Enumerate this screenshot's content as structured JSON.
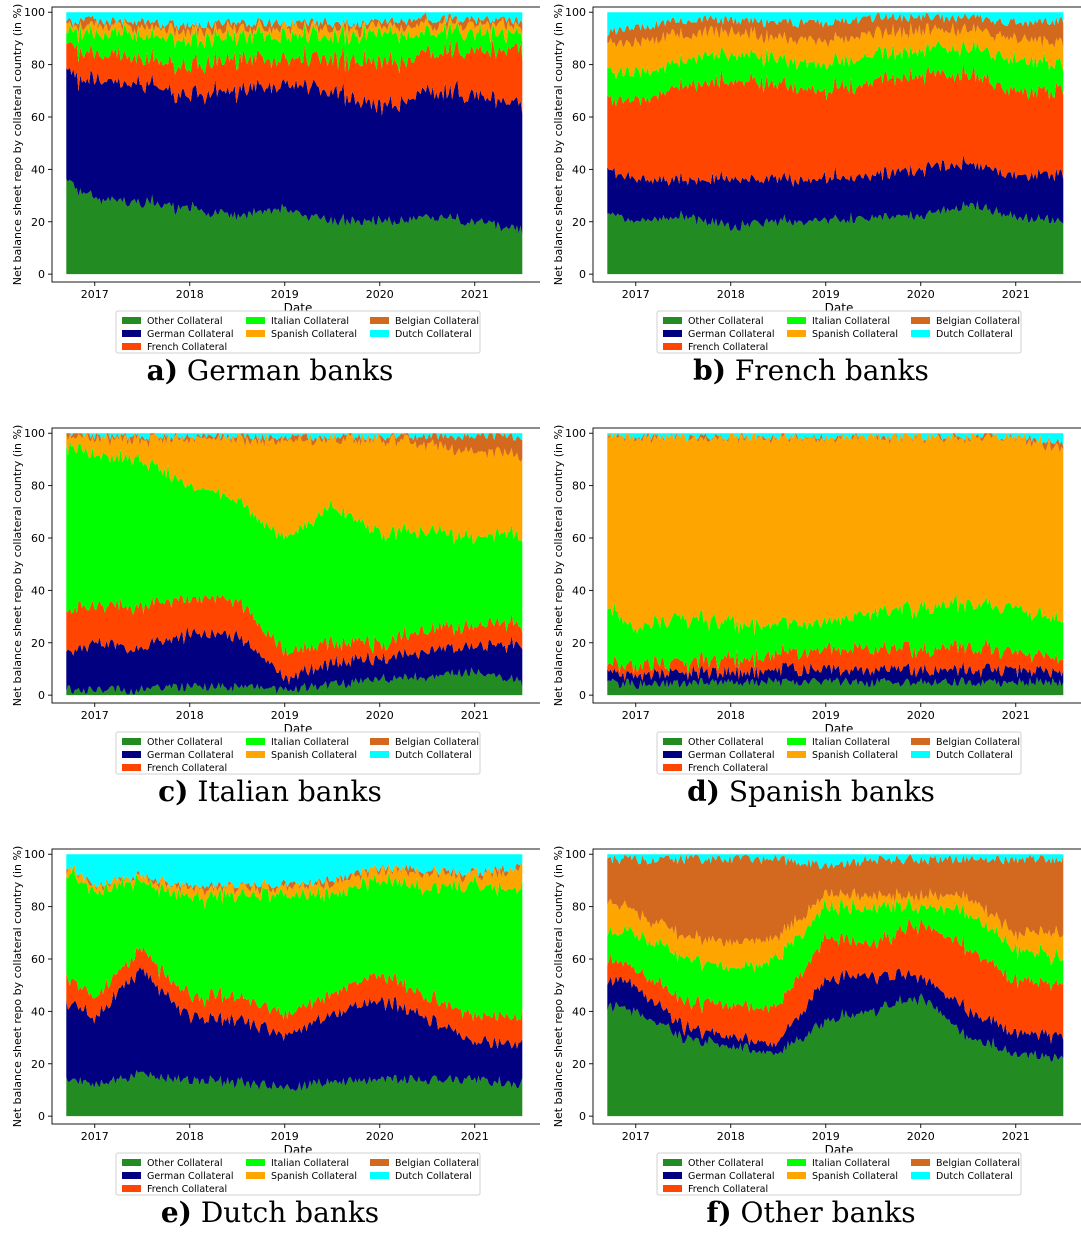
{
  "legend": {
    "entries": [
      {
        "label": "Other Collateral",
        "color": "#228B22"
      },
      {
        "label": "German Collateral",
        "color": "#000080"
      },
      {
        "label": "French Collateral",
        "color": "#FF4500"
      },
      {
        "label": "Italian Collateral",
        "color": "#00FF00"
      },
      {
        "label": "Spanish Collateral",
        "color": "#FFA500"
      },
      {
        "label": "Belgian Collateral",
        "color": "#D2691E"
      },
      {
        "label": "Dutch Collateral",
        "color": "#00FFFF"
      }
    ]
  },
  "panels": [
    {
      "letter": "a)",
      "name": "German banks"
    },
    {
      "letter": "b)",
      "name": "French banks"
    },
    {
      "letter": "c)",
      "name": "Italian banks"
    },
    {
      "letter": "d)",
      "name": "Spanish banks"
    },
    {
      "letter": "e)",
      "name": "Dutch banks"
    },
    {
      "letter": "f)",
      "name": "Other banks"
    }
  ],
  "chart_data": [
    {
      "type": "area",
      "stacked": true,
      "title": "",
      "xlabel": "Date",
      "ylabel": "Net balance sheet repo by collateral country (in %)",
      "xlim": [
        2016.55,
        2021.75
      ],
      "ylim": [
        -3,
        102
      ],
      "xticks": [
        2017,
        2018,
        2019,
        2020,
        2021
      ],
      "xtick_labels": [
        "2017",
        "2018",
        "2019",
        "2020",
        "2021"
      ],
      "yticks": [
        0,
        20,
        40,
        60,
        80,
        100
      ],
      "legend_position": "bottom",
      "x": [
        2016.7,
        2017.0,
        2017.5,
        2018.0,
        2018.5,
        2019.0,
        2019.5,
        2020.0,
        2020.5,
        2021.0,
        2021.5
      ],
      "series": [
        {
          "name": "Other Collateral",
          "values": [
            35,
            29,
            27,
            25,
            22,
            25,
            20,
            20,
            22,
            20,
            17
          ]
        },
        {
          "name": "German Collateral",
          "values": [
            41,
            45,
            45,
            43,
            48,
            48,
            50,
            43,
            48,
            48,
            48
          ]
        },
        {
          "name": "French Collateral",
          "values": [
            11,
            10,
            10,
            11,
            12,
            9,
            13,
            17,
            15,
            17,
            21
          ]
        },
        {
          "name": "Italian Collateral",
          "values": [
            5,
            8,
            9,
            10,
            9,
            9,
            8,
            11,
            8,
            7,
            6
          ]
        },
        {
          "name": "Spanish Collateral",
          "values": [
            2,
            3,
            3,
            4,
            3,
            3,
            3,
            3,
            3,
            3,
            3
          ]
        },
        {
          "name": "Belgian Collateral",
          "values": [
            2,
            2,
            2,
            2,
            2,
            2,
            2,
            2,
            2,
            2,
            2
          ]
        },
        {
          "name": "Dutch Collateral",
          "values": [
            4,
            3,
            4,
            5,
            4,
            4,
            4,
            4,
            2,
            3,
            3
          ]
        }
      ]
    },
    {
      "type": "area",
      "stacked": true,
      "title": "",
      "xlabel": "Date",
      "ylabel": "Net balance sheet repo by collateral country (in %)",
      "xlim": [
        2016.55,
        2021.75
      ],
      "ylim": [
        -3,
        102
      ],
      "xticks": [
        2017,
        2018,
        2019,
        2020,
        2021
      ],
      "xtick_labels": [
        "2017",
        "2018",
        "2019",
        "2020",
        "2021"
      ],
      "yticks": [
        0,
        20,
        40,
        60,
        80,
        100
      ],
      "legend_position": "bottom",
      "x": [
        2016.7,
        2017.0,
        2017.5,
        2018.0,
        2018.5,
        2019.0,
        2019.5,
        2020.0,
        2020.5,
        2021.0,
        2021.5
      ],
      "series": [
        {
          "name": "Other Collateral",
          "values": [
            24,
            20,
            22,
            18,
            20,
            20,
            22,
            22,
            26,
            22,
            20
          ]
        },
        {
          "name": "German Collateral",
          "values": [
            16,
            16,
            14,
            18,
            16,
            16,
            16,
            18,
            16,
            16,
            18
          ]
        },
        {
          "name": "French Collateral",
          "values": [
            26,
            30,
            36,
            38,
            36,
            34,
            36,
            36,
            34,
            32,
            32
          ]
        },
        {
          "name": "Italian Collateral",
          "values": [
            12,
            10,
            10,
            10,
            10,
            10,
            10,
            10,
            10,
            12,
            10
          ]
        },
        {
          "name": "Spanish Collateral",
          "values": [
            10,
            12,
            10,
            8,
            8,
            9,
            8,
            7,
            7,
            8,
            8
          ]
        },
        {
          "name": "Belgian Collateral",
          "values": [
            4,
            6,
            5,
            5,
            6,
            7,
            6,
            5,
            5,
            6,
            9
          ]
        },
        {
          "name": "Dutch Collateral",
          "values": [
            8,
            6,
            3,
            3,
            4,
            4,
            2,
            2,
            2,
            4,
            3
          ]
        }
      ]
    },
    {
      "type": "area",
      "stacked": true,
      "title": "",
      "xlabel": "Date",
      "ylabel": "Net balance sheet repo by collateral country (in %)",
      "xlim": [
        2016.55,
        2021.75
      ],
      "ylim": [
        -3,
        102
      ],
      "xticks": [
        2017,
        2018,
        2019,
        2020,
        2021
      ],
      "xtick_labels": [
        "2017",
        "2018",
        "2019",
        "2020",
        "2021"
      ],
      "yticks": [
        0,
        20,
        40,
        60,
        80,
        100
      ],
      "legend_position": "bottom",
      "x": [
        2016.7,
        2017.0,
        2017.5,
        2018.0,
        2018.5,
        2019.0,
        2019.5,
        2020.0,
        2020.5,
        2021.0,
        2021.5
      ],
      "series": [
        {
          "name": "Other Collateral",
          "values": [
            2,
            2,
            2,
            3,
            3,
            2,
            4,
            6,
            7,
            9,
            5
          ]
        },
        {
          "name": "German Collateral",
          "values": [
            14,
            18,
            16,
            20,
            20,
            4,
            8,
            8,
            10,
            10,
            14
          ]
        },
        {
          "name": "French Collateral",
          "values": [
            16,
            14,
            16,
            14,
            14,
            10,
            8,
            6,
            8,
            8,
            8
          ]
        },
        {
          "name": "Italian Collateral",
          "values": [
            62,
            58,
            56,
            43,
            38,
            44,
            52,
            42,
            38,
            33,
            35
          ]
        },
        {
          "name": "Spanish Collateral",
          "values": [
            4,
            6,
            8,
            18,
            23,
            38,
            26,
            36,
            33,
            33,
            30
          ]
        },
        {
          "name": "Belgian Collateral",
          "values": [
            1,
            1,
            1,
            1,
            1,
            1,
            1,
            1,
            3,
            6,
            7
          ]
        },
        {
          "name": "Dutch Collateral",
          "values": [
            1,
            1,
            1,
            1,
            1,
            1,
            1,
            1,
            1,
            1,
            1
          ]
        }
      ]
    },
    {
      "type": "area",
      "stacked": true,
      "title": "",
      "xlabel": "Date",
      "ylabel": "Net balance sheet repo by collateral country (in %)",
      "xlim": [
        2016.55,
        2021.75
      ],
      "ylim": [
        -3,
        102
      ],
      "xticks": [
        2017,
        2018,
        2019,
        2020,
        2021
      ],
      "xtick_labels": [
        "2017",
        "2018",
        "2019",
        "2020",
        "2021"
      ],
      "yticks": [
        0,
        20,
        40,
        60,
        80,
        100
      ],
      "legend_position": "bottom",
      "x": [
        2016.7,
        2017.0,
        2017.5,
        2018.0,
        2018.5,
        2019.0,
        2019.5,
        2020.0,
        2020.5,
        2021.0,
        2021.5
      ],
      "series": [
        {
          "name": "Other Collateral",
          "values": [
            5,
            4,
            5,
            5,
            5,
            5,
            5,
            5,
            5,
            5,
            5
          ]
        },
        {
          "name": "German Collateral",
          "values": [
            4,
            4,
            4,
            4,
            5,
            5,
            5,
            5,
            5,
            5,
            3
          ]
        },
        {
          "name": "French Collateral",
          "values": [
            3,
            4,
            4,
            5,
            6,
            8,
            8,
            8,
            9,
            7,
            5
          ]
        },
        {
          "name": "Italian Collateral",
          "values": [
            22,
            14,
            17,
            14,
            12,
            10,
            14,
            16,
            17,
            17,
            15
          ]
        },
        {
          "name": "Spanish Collateral",
          "values": [
            65,
            73,
            69,
            71,
            71,
            71,
            67,
            65,
            63,
            65,
            67
          ]
        },
        {
          "name": "Belgian Collateral",
          "values": [
            0,
            0,
            0,
            0,
            0,
            0,
            0,
            0,
            0,
            0,
            2
          ]
        },
        {
          "name": "Dutch Collateral",
          "values": [
            1,
            1,
            1,
            1,
            1,
            1,
            1,
            1,
            1,
            1,
            3
          ]
        }
      ]
    },
    {
      "type": "area",
      "stacked": true,
      "title": "",
      "xlabel": "Date",
      "ylabel": "Net balance sheet repo by collateral country (in %)",
      "xlim": [
        2016.55,
        2021.75
      ],
      "ylim": [
        -3,
        102
      ],
      "xticks": [
        2017,
        2018,
        2019,
        2020,
        2021
      ],
      "xtick_labels": [
        "2017",
        "2018",
        "2019",
        "2020",
        "2021"
      ],
      "yticks": [
        0,
        20,
        40,
        60,
        80,
        100
      ],
      "legend_position": "bottom",
      "x": [
        2016.7,
        2017.0,
        2017.5,
        2018.0,
        2018.5,
        2019.0,
        2019.5,
        2020.0,
        2020.5,
        2021.0,
        2021.5
      ],
      "series": [
        {
          "name": "Other Collateral",
          "values": [
            14,
            12,
            16,
            14,
            13,
            11,
            13,
            14,
            14,
            14,
            12
          ]
        },
        {
          "name": "German Collateral",
          "values": [
            30,
            26,
            40,
            24,
            24,
            20,
            26,
            30,
            24,
            14,
            16
          ]
        },
        {
          "name": "French Collateral",
          "values": [
            10,
            8,
            8,
            8,
            9,
            8,
            8,
            10,
            8,
            10,
            10
          ]
        },
        {
          "name": "Italian Collateral",
          "values": [
            40,
            40,
            26,
            38,
            38,
            46,
            38,
            36,
            42,
            50,
            48
          ]
        },
        {
          "name": "Spanish Collateral",
          "values": [
            2,
            2,
            2,
            3,
            3,
            3,
            4,
            4,
            5,
            4,
            8
          ]
        },
        {
          "name": "Belgian Collateral",
          "values": [
            0,
            0,
            0,
            1,
            1,
            1,
            1,
            1,
            1,
            1,
            1
          ]
        },
        {
          "name": "Dutch Collateral",
          "values": [
            4,
            12,
            8,
            12,
            12,
            11,
            10,
            5,
            6,
            7,
            5
          ]
        }
      ]
    },
    {
      "type": "area",
      "stacked": true,
      "title": "",
      "xlabel": "Date",
      "ylabel": "Net balance sheet repo by collateral country (in %)",
      "xlim": [
        2016.55,
        2021.75
      ],
      "ylim": [
        -3,
        102
      ],
      "xticks": [
        2017,
        2018,
        2019,
        2020,
        2021
      ],
      "xtick_labels": [
        "2017",
        "2018",
        "2019",
        "2020",
        "2021"
      ],
      "yticks": [
        0,
        20,
        40,
        60,
        80,
        100
      ],
      "legend_position": "bottom",
      "x": [
        2016.7,
        2017.0,
        2017.5,
        2018.0,
        2018.5,
        2019.0,
        2019.5,
        2020.0,
        2020.5,
        2021.0,
        2021.5
      ],
      "series": [
        {
          "name": "Other Collateral",
          "values": [
            42,
            40,
            30,
            26,
            24,
            36,
            40,
            46,
            30,
            24,
            22
          ]
        },
        {
          "name": "German Collateral",
          "values": [
            10,
            10,
            4,
            4,
            4,
            16,
            14,
            8,
            10,
            8,
            8
          ]
        },
        {
          "name": "French Collateral",
          "values": [
            8,
            6,
            10,
            12,
            14,
            16,
            12,
            20,
            24,
            20,
            20
          ]
        },
        {
          "name": "Italian Collateral",
          "values": [
            10,
            14,
            16,
            14,
            18,
            12,
            14,
            6,
            14,
            12,
            10
          ]
        },
        {
          "name": "Spanish Collateral",
          "values": [
            12,
            8,
            8,
            10,
            8,
            5,
            4,
            4,
            6,
            6,
            10
          ]
        },
        {
          "name": "Belgian Collateral",
          "values": [
            16,
            20,
            30,
            32,
            30,
            11,
            14,
            14,
            14,
            28,
            28
          ]
        },
        {
          "name": "Dutch Collateral",
          "values": [
            2,
            2,
            2,
            2,
            2,
            4,
            2,
            2,
            2,
            2,
            2
          ]
        }
      ]
    }
  ]
}
